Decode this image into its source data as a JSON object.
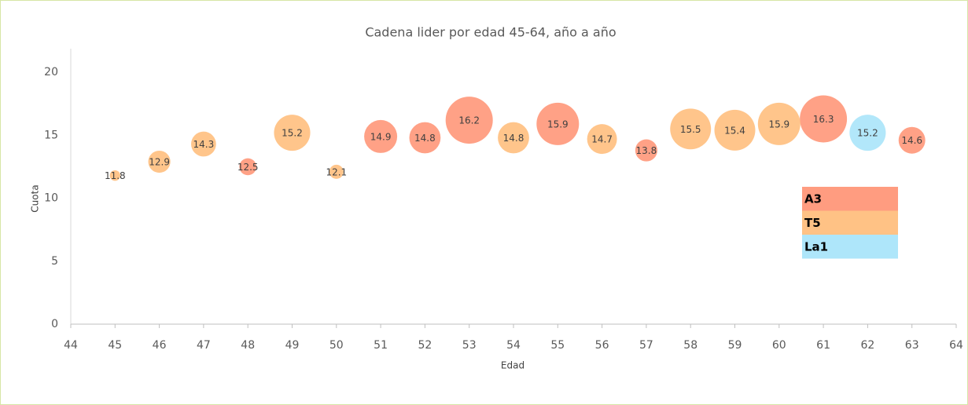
{
  "chart_data": {
    "type": "bubble",
    "title": "Cadena lider por edad 45-64, año a año",
    "x_label": "Edad",
    "y_label": "Cuota",
    "xlim": [
      44,
      64
    ],
    "xticks": [
      44,
      45,
      46,
      47,
      48,
      49,
      50,
      51,
      52,
      53,
      54,
      55,
      56,
      57,
      58,
      59,
      60,
      61,
      62,
      63,
      64
    ],
    "ylim": [
      0,
      22
    ],
    "yticks": [
      0,
      5,
      10,
      15,
      20
    ],
    "grid": false,
    "legend": "right",
    "series": [
      {
        "name": "A3",
        "color": "#FF9C80",
        "x": [
          48,
          51,
          52,
          53,
          55,
          57,
          61,
          63
        ],
        "values": [
          12.5,
          14.9,
          14.8,
          16.2,
          15.9,
          13.8,
          16.3,
          14.6
        ],
        "sizes": [
          13,
          49,
          44,
          100,
          81,
          22,
          100,
          32
        ]
      },
      {
        "name": "T5",
        "color": "#FFC285",
        "x": [
          45,
          46,
          47,
          49,
          50,
          54,
          56,
          58,
          59,
          60
        ],
        "values": [
          11.8,
          12.9,
          14.3,
          15.2,
          12.1,
          14.8,
          14.7,
          15.5,
          15.4,
          15.9
        ],
        "sizes": [
          5,
          22,
          28,
          59,
          9,
          44,
          40,
          75,
          75,
          81
        ]
      },
      {
        "name": "La1",
        "color": "#AEE6FA",
        "x": [
          62
        ],
        "values": [
          15.2
        ],
        "sizes": [
          59
        ]
      }
    ]
  }
}
